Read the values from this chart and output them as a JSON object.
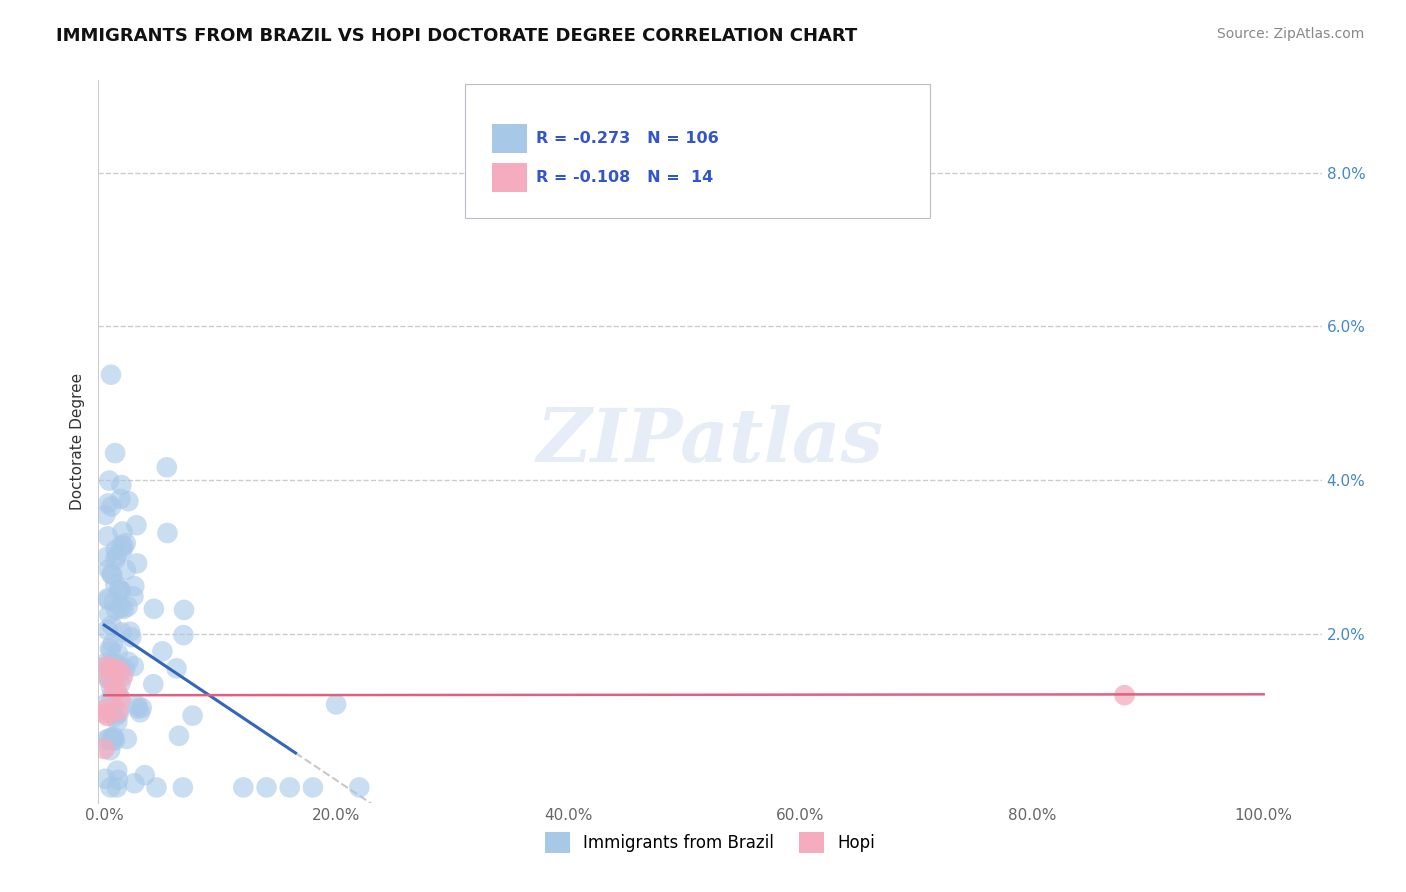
{
  "title": "IMMIGRANTS FROM BRAZIL VS HOPI DOCTORATE DEGREE CORRELATION CHART",
  "source": "Source: ZipAtlas.com",
  "ylabel": "Doctorate Degree",
  "watermark": "ZIPatlas",
  "legend_brazil": "Immigrants from Brazil",
  "legend_hopi": "Hopi",
  "r_brazil": -0.273,
  "n_brazil": 106,
  "r_hopi": -0.108,
  "n_hopi": 14,
  "xlim": [
    -0.005,
    1.05
  ],
  "ylim": [
    -0.002,
    0.092
  ],
  "xtick_vals": [
    0.0,
    0.2,
    0.4,
    0.6,
    0.8,
    1.0
  ],
  "ytick_vals": [
    0.0,
    0.02,
    0.04,
    0.06,
    0.08
  ],
  "xticklabels": [
    "0.0%",
    "20.0%",
    "40.0%",
    "60.0%",
    "80.0%",
    "100.0%"
  ],
  "yticklabels": [
    "",
    "2.0%",
    "4.0%",
    "6.0%",
    "8.0%"
  ],
  "color_brazil": "#A8C8E8",
  "color_hopi": "#F4ACBE",
  "line_brazil": "#3366BB",
  "line_hopi": "#E06080",
  "line_ext": "#BBBBBB",
  "background": "#FFFFFF",
  "grid_color": "#CCCCCC",
  "r_text_color": "#3355CC",
  "title_color": "#111111",
  "source_color": "#888888",
  "ylabel_color": "#333333",
  "ytick_color": "#4488CC",
  "xtick_color": "#666666"
}
